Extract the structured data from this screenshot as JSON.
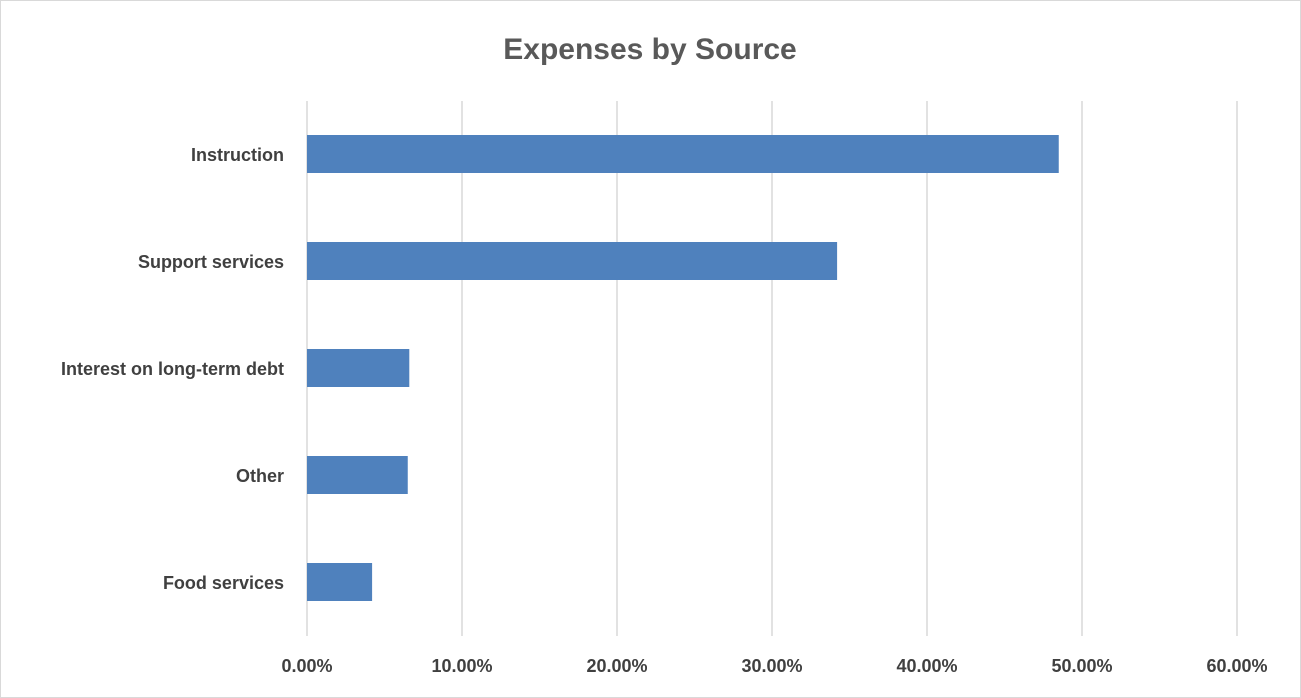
{
  "chart_data": {
    "type": "bar",
    "orientation": "horizontal",
    "title": "Expenses by Source",
    "xlabel": "",
    "ylabel": "",
    "categories": [
      "Instruction",
      "Support services",
      "Interest on long-term debt",
      "Other",
      "Food services"
    ],
    "values": [
      48.5,
      34.2,
      6.6,
      6.5,
      4.2
    ],
    "value_unit": "%",
    "xlim": [
      0,
      60
    ],
    "x_ticks": [
      "0.00%",
      "10.00%",
      "20.00%",
      "30.00%",
      "40.00%",
      "50.00%",
      "60.00%"
    ],
    "grid": "vertical",
    "legend": "none",
    "bar_color": "#4f81bd"
  }
}
